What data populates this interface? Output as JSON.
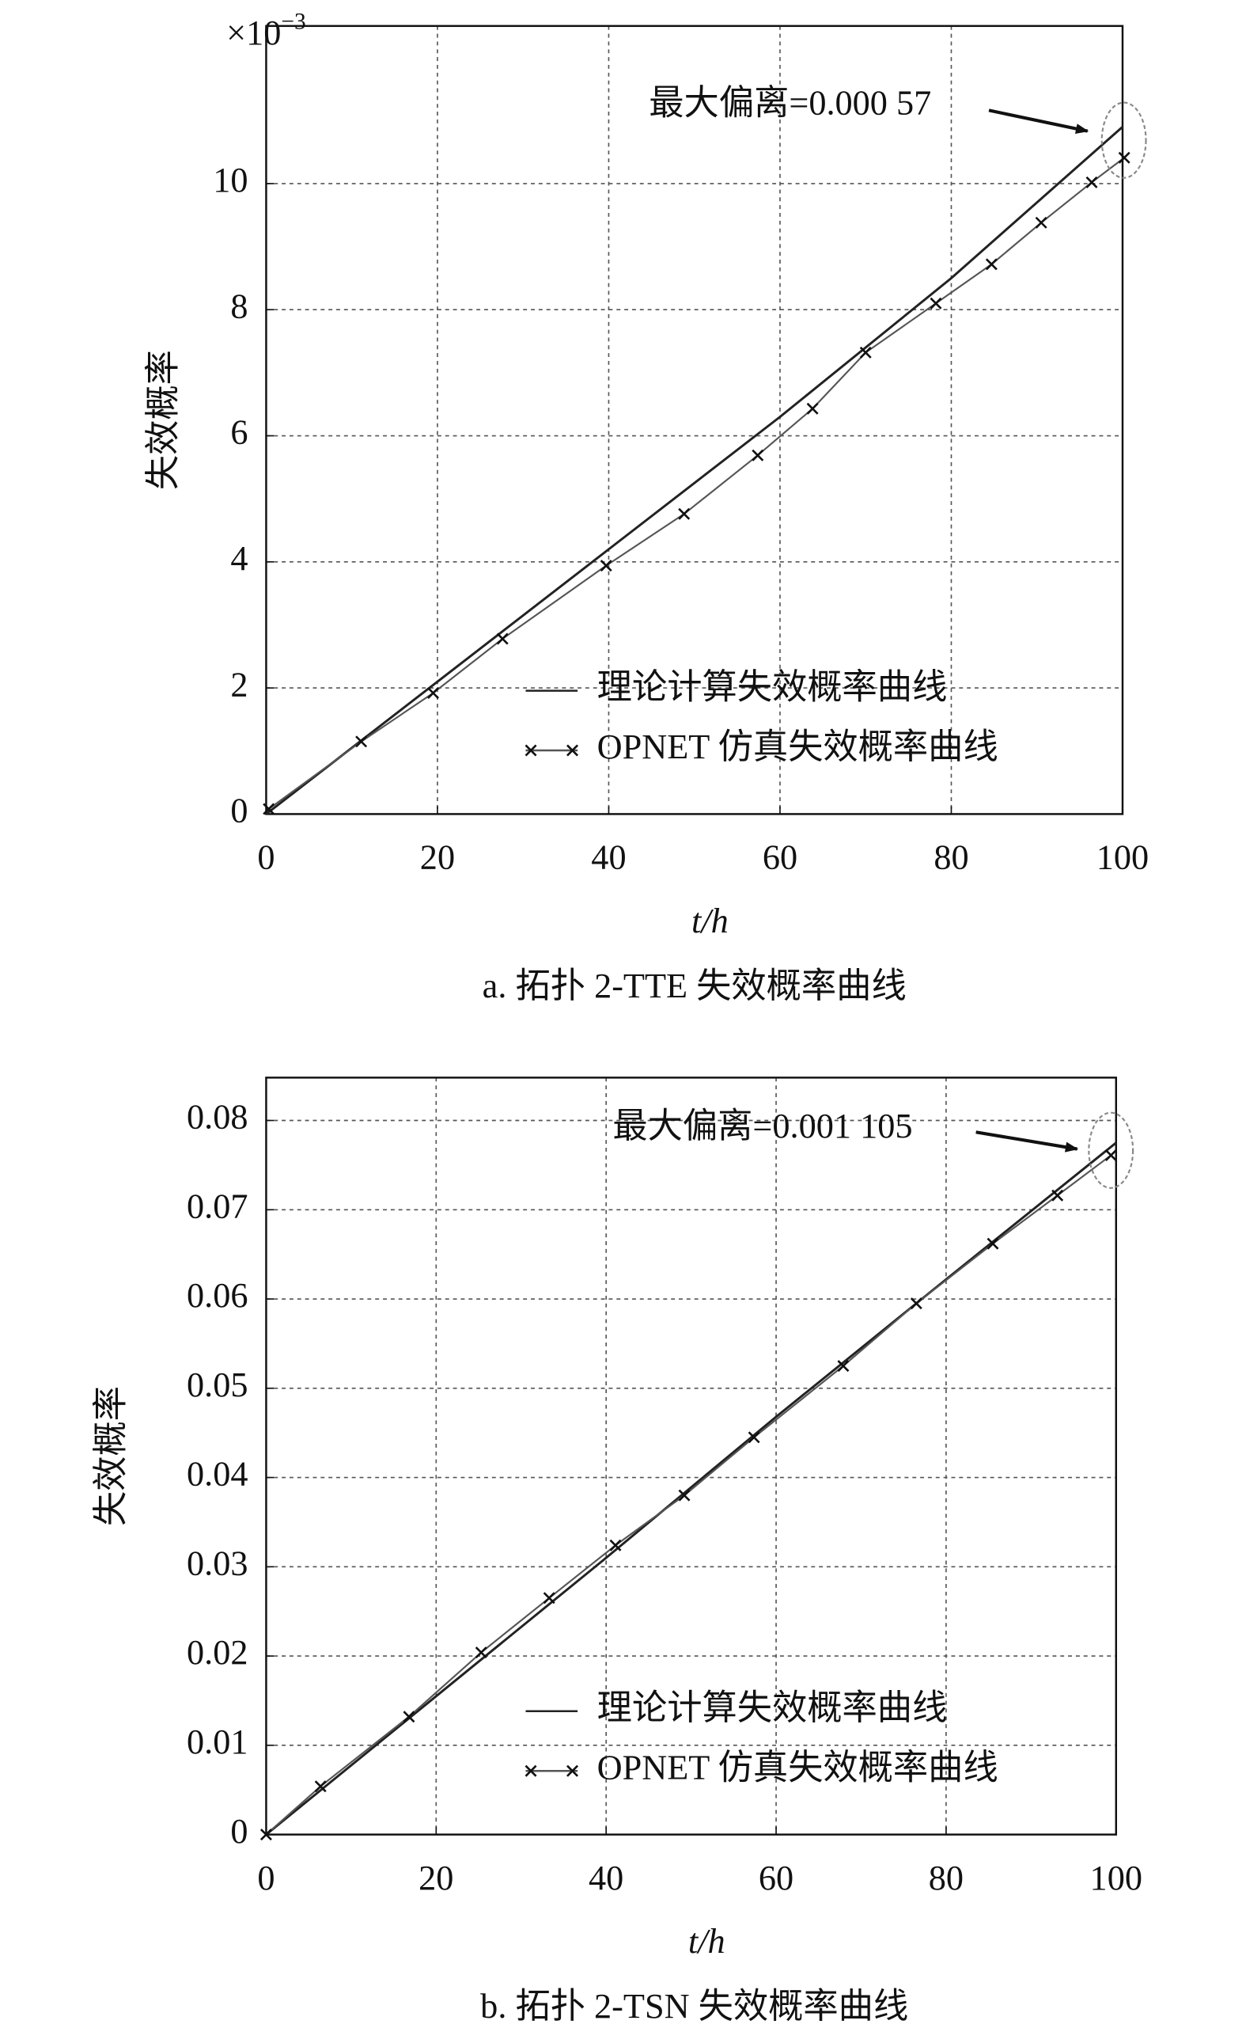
{
  "chart_data": [
    {
      "type": "line",
      "caption": "a. 拓扑 2-TTE 失效概率曲线",
      "ylabel": "失效概率",
      "xlabel": "t/h",
      "y_multiplier": {
        "base": "×10",
        "exponent": "−3"
      },
      "xlim": [
        0,
        100
      ],
      "xticks": [
        0,
        20,
        40,
        60,
        80,
        100
      ],
      "ylim": [
        0,
        12.5
      ],
      "yticks": [
        0,
        2,
        4,
        6,
        8,
        10
      ],
      "grid": true,
      "series": [
        {
          "name": "理论计算失效概率曲线",
          "color": "#222222",
          "marker": "none",
          "x": [
            0,
            20,
            40,
            60,
            80,
            100
          ],
          "values": [
            0,
            2.1,
            4.2,
            6.3,
            8.5,
            10.9
          ]
        },
        {
          "name": "OPNET 仿真失效概率曲线",
          "color": "#555555",
          "marker": "x",
          "x": [
            0.3,
            11.1,
            19.5,
            27.6,
            39.7,
            48.8,
            57.4,
            63.8,
            70,
            78.2,
            84.7,
            90.5,
            96.4,
            100.2
          ],
          "values": [
            0.08,
            1.15,
            1.92,
            2.78,
            3.94,
            4.76,
            5.69,
            6.43,
            7.32,
            8.1,
            8.72,
            9.38,
            10.02,
            10.41
          ]
        }
      ],
      "annotation": "最大偏离=0.000 57"
    },
    {
      "type": "line",
      "caption": "b. 拓扑 2-TSN 失效概率曲线",
      "ylabel": "失效概率",
      "xlabel": "t/h",
      "xlim": [
        0,
        100
      ],
      "xticks": [
        0,
        20,
        40,
        60,
        80,
        100
      ],
      "ylim": [
        0,
        0.0848
      ],
      "yticks": [
        0,
        0.01,
        0.02,
        0.03,
        0.04,
        0.05,
        0.06,
        0.07,
        0.08
      ],
      "grid": true,
      "series": [
        {
          "name": "理论计算失效概率曲线",
          "color": "#222222",
          "marker": "none",
          "x": [
            0,
            20,
            40,
            60,
            80,
            100
          ],
          "values": [
            0,
            0.0155,
            0.031,
            0.0468,
            0.0622,
            0.0775
          ]
        },
        {
          "name": "OPNET 仿真失效概率曲线",
          "color": "#555555",
          "marker": "x",
          "x": [
            0,
            6.4,
            16.8,
            25.3,
            33.3,
            41.1,
            49.2,
            57.4,
            67.9,
            76.5,
            85.5,
            93.1,
            99.4
          ],
          "values": [
            0,
            0.0054,
            0.0132,
            0.0204,
            0.0265,
            0.0324,
            0.038,
            0.0445,
            0.0525,
            0.0595,
            0.0662,
            0.0716,
            0.0761
          ]
        }
      ],
      "annotation": "最大偏离=0.001 105"
    }
  ]
}
